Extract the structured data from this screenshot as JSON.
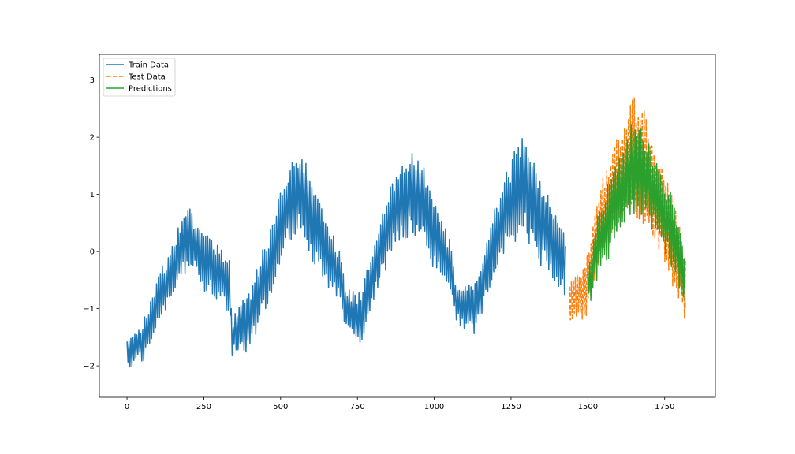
{
  "chart_data": {
    "type": "line",
    "title": "",
    "xlabel": "",
    "ylabel": "",
    "xlim": [
      -90,
      1915
    ],
    "ylim": [
      -2.55,
      3.45
    ],
    "xticks": [
      0,
      250,
      500,
      750,
      1000,
      1250,
      1500,
      1750
    ],
    "xtick_labels": [
      "0",
      "250",
      "500",
      "750",
      "1000",
      "1250",
      "1500",
      "1750"
    ],
    "yticks": [
      -2,
      -1,
      0,
      1,
      2,
      3
    ],
    "ytick_labels": [
      "−2",
      "−1",
      "0",
      "1",
      "2",
      "3"
    ],
    "grid": false,
    "legend_position": "top-left",
    "series": [
      {
        "name": "Train Data",
        "color": "#1f77b4",
        "style": "solid",
        "x_range": [
          0,
          1430
        ],
        "trend": [
          [
            0,
            -1.8
          ],
          [
            50,
            -1.6
          ],
          [
            100,
            -0.9
          ],
          [
            150,
            -0.3
          ],
          [
            200,
            0.3
          ],
          [
            250,
            -0.1
          ],
          [
            300,
            -0.4
          ],
          [
            335,
            -0.6
          ],
          [
            340,
            -1.5
          ],
          [
            400,
            -1.2
          ],
          [
            460,
            -0.3
          ],
          [
            520,
            0.8
          ],
          [
            560,
            1.1
          ],
          [
            600,
            0.6
          ],
          [
            650,
            0.0
          ],
          [
            700,
            -0.5
          ],
          [
            710,
            -1.0
          ],
          [
            760,
            -1.2
          ],
          [
            800,
            -0.4
          ],
          [
            860,
            0.6
          ],
          [
            920,
            1.0
          ],
          [
            960,
            0.9
          ],
          [
            1010,
            0.2
          ],
          [
            1060,
            -0.4
          ],
          [
            1070,
            -0.9
          ],
          [
            1130,
            -1.0
          ],
          [
            1190,
            0.0
          ],
          [
            1240,
            0.8
          ],
          [
            1290,
            1.2
          ],
          [
            1350,
            0.5
          ],
          [
            1400,
            0.0
          ],
          [
            1430,
            -0.3
          ]
        ],
        "amplitude": [
          [
            0,
            0.25
          ],
          [
            150,
            0.5
          ],
          [
            250,
            0.55
          ],
          [
            335,
            0.5
          ],
          [
            340,
            0.35
          ],
          [
            450,
            0.6
          ],
          [
            560,
            0.75
          ],
          [
            700,
            0.5
          ],
          [
            710,
            0.3
          ],
          [
            800,
            0.5
          ],
          [
            920,
            0.75
          ],
          [
            1060,
            0.5
          ],
          [
            1070,
            0.3
          ],
          [
            1200,
            0.6
          ],
          [
            1290,
            0.85
          ],
          [
            1430,
            0.6
          ]
        ]
      },
      {
        "name": "Test Data",
        "color": "#ff7f0e",
        "style": "dashed",
        "x_range": [
          1440,
          1820
        ],
        "trend": [
          [
            1440,
            -0.8
          ],
          [
            1490,
            -0.8
          ],
          [
            1530,
            0.3
          ],
          [
            1580,
            1.0
          ],
          [
            1650,
            1.7
          ],
          [
            1700,
            1.3
          ],
          [
            1760,
            0.5
          ],
          [
            1800,
            -0.2
          ],
          [
            1820,
            -0.7
          ]
        ],
        "amplitude": [
          [
            1440,
            0.4
          ],
          [
            1500,
            0.5
          ],
          [
            1580,
            0.8
          ],
          [
            1660,
            1.1
          ],
          [
            1720,
            0.9
          ],
          [
            1800,
            0.7
          ],
          [
            1820,
            0.6
          ]
        ]
      },
      {
        "name": "Predictions",
        "color": "#2ca02c",
        "style": "solid",
        "x_range": [
          1500,
          1820
        ],
        "trend": [
          [
            1500,
            -0.6
          ],
          [
            1540,
            0.2
          ],
          [
            1590,
            0.9
          ],
          [
            1650,
            1.5
          ],
          [
            1700,
            1.2
          ],
          [
            1760,
            0.5
          ],
          [
            1800,
            -0.1
          ],
          [
            1820,
            -0.6
          ]
        ],
        "amplitude": [
          [
            1500,
            0.4
          ],
          [
            1580,
            0.7
          ],
          [
            1660,
            0.85
          ],
          [
            1720,
            0.75
          ],
          [
            1800,
            0.55
          ],
          [
            1820,
            0.5
          ]
        ]
      }
    ]
  }
}
